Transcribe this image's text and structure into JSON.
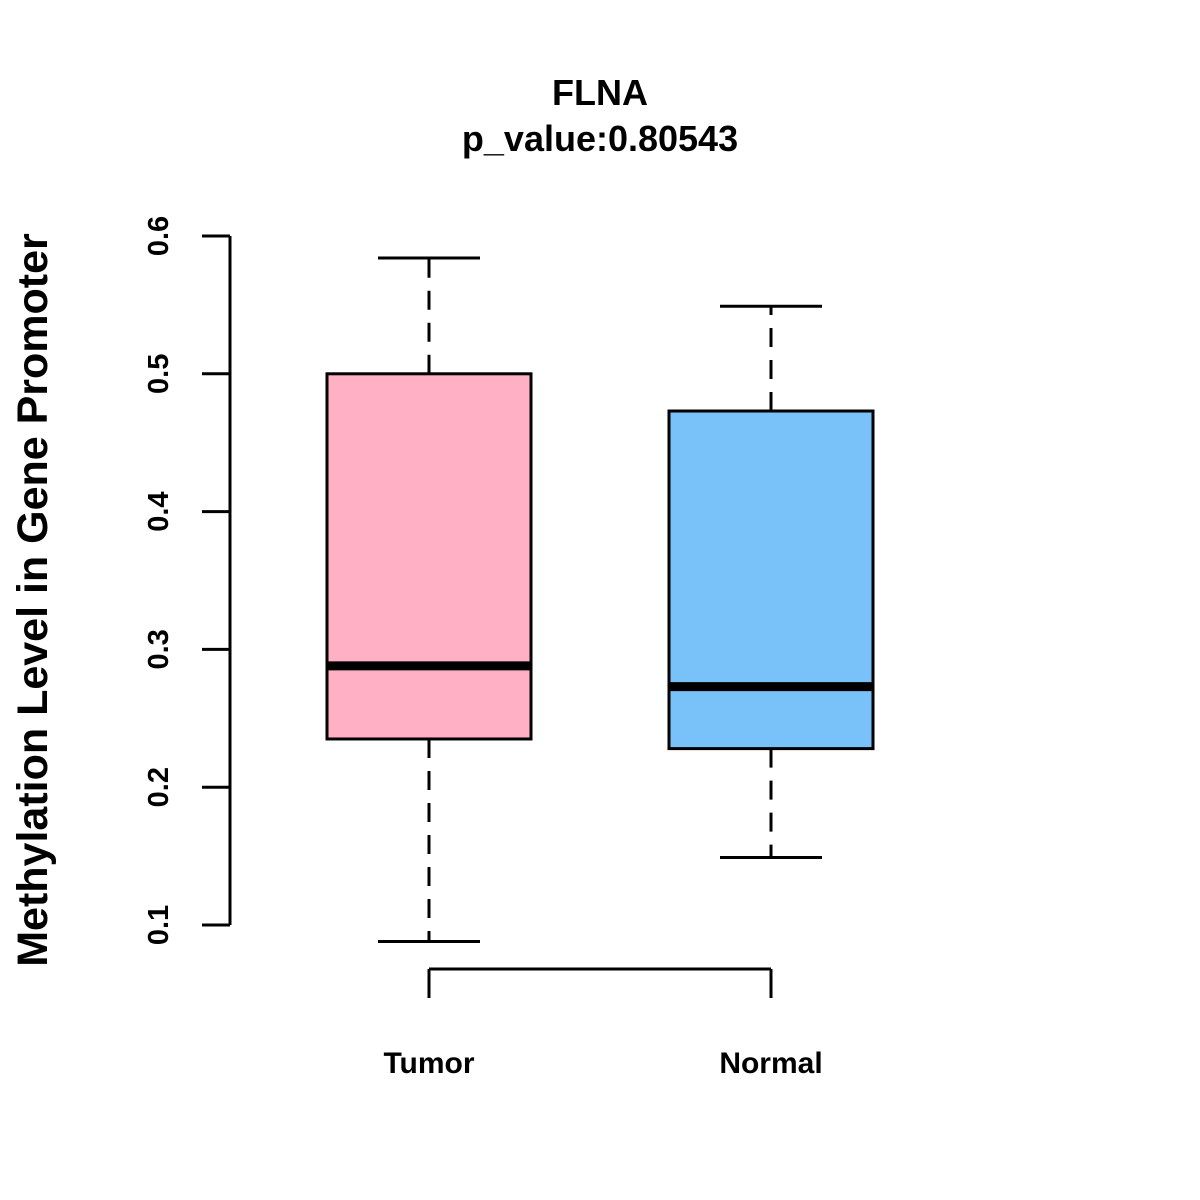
{
  "chart_data": {
    "type": "boxplot",
    "title": "FLNA",
    "subtitle": "p_value:0.80543",
    "xlabel": "",
    "ylabel": "Methylation Level in Gene Promoter",
    "ylim": [
      0.1,
      0.6
    ],
    "yticks": [
      {
        "value": 0.1,
        "label": "0.1"
      },
      {
        "value": 0.2,
        "label": "0.2"
      },
      {
        "value": 0.3,
        "label": "0.3"
      },
      {
        "value": 0.4,
        "label": "0.4"
      },
      {
        "value": 0.5,
        "label": "0.5"
      },
      {
        "value": 0.6,
        "label": "0.6"
      }
    ],
    "grid": false,
    "categories": [
      "Tumor",
      "Normal"
    ],
    "boxes": [
      {
        "category": "Tumor",
        "color": "#FFB0C4",
        "whisker_low": 0.088,
        "q1": 0.235,
        "median": 0.288,
        "q3": 0.5,
        "whisker_high": 0.584
      },
      {
        "category": "Normal",
        "color": "#78C1F9",
        "whisker_low": 0.149,
        "q1": 0.228,
        "median": 0.273,
        "q3": 0.473,
        "whisker_high": 0.549
      }
    ]
  }
}
